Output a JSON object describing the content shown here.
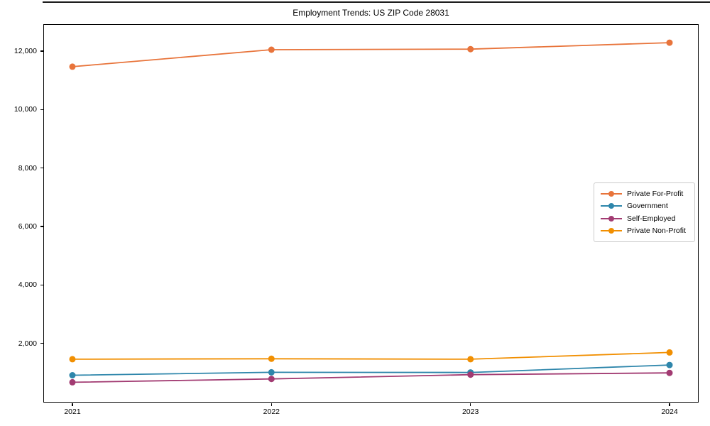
{
  "chart_data": {
    "type": "line",
    "title": "Employment Trends: US ZIP Code 28031",
    "categories": [
      "2021",
      "2022",
      "2023",
      "2024"
    ],
    "series": [
      {
        "name": "Private For-Profit",
        "color": "#E8743B",
        "values": [
          11470,
          12050,
          12070,
          12290
        ]
      },
      {
        "name": "Government",
        "color": "#2E86AB",
        "values": [
          910,
          1010,
          1005,
          1260
        ]
      },
      {
        "name": "Self-Employed",
        "color": "#A23B72",
        "values": [
          670,
          785,
          930,
          990
        ]
      },
      {
        "name": "Private Non-Profit",
        "color": "#F18F01",
        "values": [
          1460,
          1475,
          1460,
          1690
        ]
      }
    ],
    "xlabel": "",
    "ylabel": "",
    "ylim": [
      0,
      12900
    ],
    "yticks": [
      {
        "value": 2000,
        "label": "2,000"
      },
      {
        "value": 4000,
        "label": "4,000"
      },
      {
        "value": 6000,
        "label": "6,000"
      },
      {
        "value": 8000,
        "label": "8,000"
      },
      {
        "value": 10000,
        "label": "10,000"
      },
      {
        "value": 12000,
        "label": "12,000"
      }
    ],
    "legend_position": "center-right",
    "grid": false,
    "marker": "circle",
    "colors": {
      "axis": "#000000",
      "text": "#000000",
      "legend_border": "#cccccc",
      "background": "#ffffff"
    }
  }
}
